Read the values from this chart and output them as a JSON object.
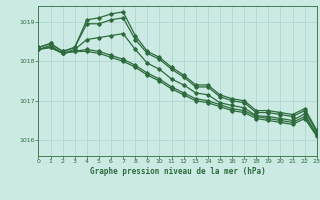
{
  "title": "Graphe pression niveau de la mer (hPa)",
  "background_color": "#cceae4",
  "grid_color": "#aad4cc",
  "line_color": "#2d6b3c",
  "x_min": 0,
  "x_max": 23,
  "y_min": 1015.6,
  "y_max": 1019.4,
  "yticks": [
    1016,
    1017,
    1018,
    1019
  ],
  "xticks": [
    0,
    1,
    2,
    3,
    4,
    5,
    6,
    7,
    8,
    9,
    10,
    11,
    12,
    13,
    14,
    15,
    16,
    17,
    18,
    19,
    20,
    21,
    22,
    23
  ],
  "series": [
    {
      "x": [
        0,
        1,
        2,
        3,
        4,
        5,
        6,
        7,
        8,
        9,
        10,
        11,
        12,
        13,
        14,
        15,
        16,
        17,
        18,
        19,
        20,
        21,
        22,
        23
      ],
      "y": [
        1018.35,
        1018.45,
        1018.25,
        1018.35,
        1018.95,
        1018.95,
        1019.05,
        1019.1,
        1018.55,
        1018.2,
        1018.05,
        1017.8,
        1017.6,
        1017.35,
        1017.35,
        1017.1,
        1017.0,
        1016.95,
        1016.7,
        1016.7,
        1016.65,
        1016.6,
        1016.75,
        1016.2
      ]
    },
    {
      "x": [
        0,
        1,
        2,
        3,
        4,
        5,
        6,
        7,
        8,
        9,
        10,
        11,
        12,
        13,
        14,
        15,
        16,
        17,
        18,
        19,
        20,
        21,
        22,
        23
      ],
      "y": [
        1018.35,
        1018.45,
        1018.25,
        1018.35,
        1019.05,
        1019.1,
        1019.2,
        1019.25,
        1018.65,
        1018.25,
        1018.1,
        1017.85,
        1017.65,
        1017.4,
        1017.4,
        1017.15,
        1017.05,
        1017.0,
        1016.75,
        1016.75,
        1016.7,
        1016.65,
        1016.8,
        1016.25
      ]
    },
    {
      "x": [
        0,
        1,
        2,
        3,
        4,
        5,
        6,
        7,
        8,
        9,
        10,
        11,
        12,
        13,
        14,
        15,
        16,
        17,
        18,
        19,
        20,
        21,
        22,
        23
      ],
      "y": [
        1018.3,
        1018.35,
        1018.2,
        1018.25,
        1018.25,
        1018.2,
        1018.1,
        1018.0,
        1017.85,
        1017.65,
        1017.5,
        1017.3,
        1017.15,
        1017.0,
        1016.95,
        1016.85,
        1016.75,
        1016.7,
        1016.55,
        1016.5,
        1016.45,
        1016.4,
        1016.55,
        1016.1
      ]
    },
    {
      "x": [
        0,
        1,
        2,
        3,
        4,
        5,
        6,
        7,
        8,
        9,
        10,
        11,
        12,
        13,
        14,
        15,
        16,
        17,
        18,
        19,
        20,
        21,
        22,
        23
      ],
      "y": [
        1018.3,
        1018.35,
        1018.2,
        1018.25,
        1018.3,
        1018.25,
        1018.15,
        1018.05,
        1017.9,
        1017.7,
        1017.55,
        1017.35,
        1017.2,
        1017.05,
        1017.0,
        1016.9,
        1016.8,
        1016.75,
        1016.6,
        1016.55,
        1016.5,
        1016.45,
        1016.6,
        1016.15
      ]
    },
    {
      "x": [
        0,
        1,
        2,
        3,
        4,
        5,
        6,
        7,
        8,
        9,
        10,
        11,
        12,
        13,
        14,
        15,
        16,
        17,
        18,
        19,
        20,
        21,
        22,
        23
      ],
      "y": [
        1018.3,
        1018.4,
        1018.2,
        1018.3,
        1018.55,
        1018.6,
        1018.65,
        1018.7,
        1018.3,
        1017.95,
        1017.8,
        1017.55,
        1017.4,
        1017.2,
        1017.15,
        1016.95,
        1016.88,
        1016.82,
        1016.62,
        1016.6,
        1016.55,
        1016.5,
        1016.67,
        1016.12
      ]
    }
  ]
}
